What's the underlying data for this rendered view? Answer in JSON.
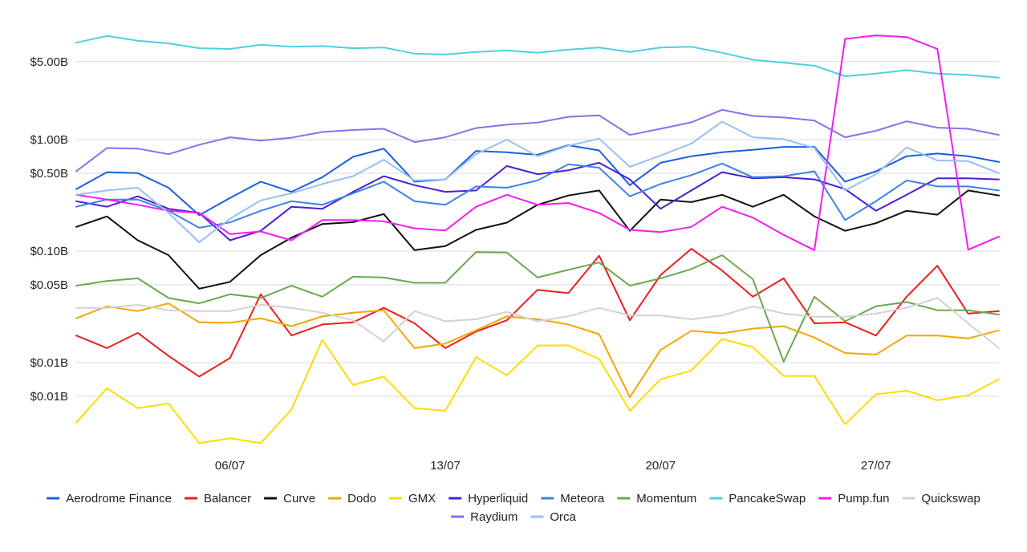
{
  "chart_data": {
    "type": "line",
    "title": "",
    "xlabel": "",
    "ylabel": "",
    "y_scale": "log",
    "grid": "horizontal",
    "legend_position": "bottom",
    "x_count": 31,
    "x_tick_labels": [
      {
        "index": 5,
        "label": "06/07"
      },
      {
        "index": 12,
        "label": "13/07"
      },
      {
        "index": 19,
        "label": "20/07"
      },
      {
        "index": 26,
        "label": "27/07"
      }
    ],
    "y_gridlines": [
      {
        "value": 5.0,
        "label": "$5.00B"
      },
      {
        "value": 1.0,
        "label": "$1.00B"
      },
      {
        "value": 0.5,
        "label": "$0.50B"
      },
      {
        "value": 0.1,
        "label": "$0.10B"
      },
      {
        "value": 0.05,
        "label": "$0.05B"
      },
      {
        "value": 0.01,
        "label": "$0.01B"
      },
      {
        "value": 0.005,
        "label": "$0.01B"
      }
    ],
    "series": [
      {
        "name": "Aerodrome Finance",
        "color": "#1a5fe0",
        "values": [
          0.36,
          0.51,
          0.5,
          0.37,
          0.21,
          0.3,
          0.42,
          0.34,
          0.46,
          0.7,
          0.83,
          0.42,
          0.44,
          0.79,
          0.77,
          0.73,
          0.89,
          0.8,
          0.39,
          0.62,
          0.71,
          0.77,
          0.81,
          0.86,
          0.86,
          0.42,
          0.52,
          0.71,
          0.75,
          0.71,
          0.63
        ]
      },
      {
        "name": "Balancer",
        "color": "#ee1d1d",
        "values": [
          0.0175,
          0.0135,
          0.0185,
          0.0115,
          0.0075,
          0.011,
          0.041,
          0.0175,
          0.022,
          0.023,
          0.031,
          0.0225,
          0.0135,
          0.019,
          0.024,
          0.045,
          0.042,
          0.091,
          0.024,
          0.061,
          0.105,
          0.067,
          0.039,
          0.057,
          0.0225,
          0.023,
          0.0175,
          0.039,
          0.074,
          0.0275,
          0.029
        ]
      },
      {
        "name": "Curve",
        "color": "#111111",
        "values": [
          0.165,
          0.205,
          0.125,
          0.092,
          0.046,
          0.053,
          0.092,
          0.132,
          0.175,
          0.182,
          0.215,
          0.102,
          0.111,
          0.155,
          0.18,
          0.26,
          0.315,
          0.35,
          0.152,
          0.29,
          0.275,
          0.32,
          0.25,
          0.32,
          0.205,
          0.152,
          0.178,
          0.23,
          0.212,
          0.35,
          0.315
        ]
      },
      {
        "name": "Dodo",
        "color": "#f5a500",
        "values": [
          0.025,
          0.032,
          0.029,
          0.034,
          0.023,
          0.0228,
          0.025,
          0.0212,
          0.026,
          0.028,
          0.0295,
          0.0135,
          0.0148,
          0.0195,
          0.026,
          0.0245,
          0.022,
          0.018,
          0.0049,
          0.013,
          0.0193,
          0.0183,
          0.0202,
          0.0212,
          0.0168,
          0.0122,
          0.0118,
          0.0175,
          0.0175,
          0.0165,
          0.0195
        ]
      },
      {
        "name": "GMX",
        "color": "#fddc00",
        "values": [
          0.0029,
          0.0059,
          0.0039,
          0.0043,
          0.0019,
          0.0021,
          0.0019,
          0.0038,
          0.016,
          0.0063,
          0.0075,
          0.0039,
          0.0037,
          0.0112,
          0.0077,
          0.0142,
          0.0143,
          0.0108,
          0.0037,
          0.0071,
          0.0085,
          0.0163,
          0.0138,
          0.0076,
          0.0076,
          0.0028,
          0.0052,
          0.0056,
          0.0046,
          0.0051,
          0.0071
        ]
      },
      {
        "name": "Hyperliquid",
        "color": "#4a1fd6",
        "values": [
          0.28,
          0.25,
          0.31,
          0.24,
          0.22,
          0.125,
          0.152,
          0.25,
          0.24,
          0.34,
          0.47,
          0.39,
          0.34,
          0.35,
          0.58,
          0.49,
          0.53,
          0.62,
          0.44,
          0.24,
          0.35,
          0.51,
          0.45,
          0.46,
          0.44,
          0.36,
          0.23,
          0.32,
          0.45,
          0.45,
          0.44
        ]
      },
      {
        "name": "Meteora",
        "color": "#3e82e8",
        "values": [
          0.25,
          0.29,
          0.29,
          0.23,
          0.162,
          0.181,
          0.23,
          0.28,
          0.26,
          0.33,
          0.42,
          0.28,
          0.26,
          0.38,
          0.37,
          0.43,
          0.6,
          0.56,
          0.31,
          0.4,
          0.48,
          0.61,
          0.46,
          0.47,
          0.52,
          0.19,
          0.28,
          0.43,
          0.38,
          0.38,
          0.35
        ]
      },
      {
        "name": "Momentum",
        "color": "#6aa84f",
        "values": [
          0.049,
          0.054,
          0.057,
          0.038,
          0.034,
          0.041,
          0.038,
          0.049,
          0.039,
          0.059,
          0.058,
          0.052,
          0.052,
          0.098,
          0.097,
          0.058,
          0.068,
          0.079,
          0.049,
          0.057,
          0.069,
          0.092,
          0.056,
          0.0102,
          0.039,
          0.0235,
          0.032,
          0.035,
          0.0295,
          0.0295,
          0.027
        ]
      },
      {
        "name": "PancakeSwap",
        "color": "#4fcfe0",
        "values": [
          7.4,
          8.5,
          7.7,
          7.3,
          6.6,
          6.5,
          7.1,
          6.8,
          6.9,
          6.6,
          6.7,
          5.9,
          5.8,
          6.1,
          6.3,
          6.0,
          6.4,
          6.7,
          6.1,
          6.7,
          6.8,
          6.0,
          5.2,
          4.9,
          4.6,
          3.7,
          3.9,
          4.2,
          3.9,
          3.8,
          3.6
        ]
      },
      {
        "name": "Pump.fun",
        "color": "#f01ef0",
        "values": [
          0.32,
          0.29,
          0.26,
          0.23,
          0.22,
          0.142,
          0.15,
          0.125,
          0.19,
          0.19,
          0.185,
          0.16,
          0.153,
          0.25,
          0.32,
          0.26,
          0.27,
          0.22,
          0.155,
          0.148,
          0.165,
          0.25,
          0.2,
          0.14,
          0.102,
          8.0,
          8.6,
          8.3,
          6.5,
          0.103,
          0.135
        ]
      },
      {
        "name": "Quickswap",
        "color": "#d2d2d2",
        "values": [
          0.031,
          0.031,
          0.033,
          0.0295,
          0.029,
          0.029,
          0.033,
          0.031,
          0.028,
          0.024,
          0.0155,
          0.029,
          0.0235,
          0.0245,
          0.0285,
          0.0235,
          0.026,
          0.031,
          0.0265,
          0.0265,
          0.0245,
          0.0265,
          0.032,
          0.0275,
          0.0258,
          0.0258,
          0.0275,
          0.031,
          0.038,
          0.0225,
          0.0135
        ]
      },
      {
        "name": "Raydium",
        "color": "#8a6ff0",
        "values": [
          0.52,
          0.84,
          0.83,
          0.74,
          0.9,
          1.05,
          0.98,
          1.04,
          1.17,
          1.22,
          1.25,
          0.95,
          1.05,
          1.27,
          1.36,
          1.42,
          1.6,
          1.65,
          1.1,
          1.25,
          1.43,
          1.85,
          1.63,
          1.58,
          1.48,
          1.05,
          1.2,
          1.46,
          1.28,
          1.25,
          1.1
        ]
      },
      {
        "name": "Orca",
        "color": "#97bff5",
        "values": [
          0.32,
          0.35,
          0.37,
          0.22,
          0.12,
          0.195,
          0.285,
          0.33,
          0.4,
          0.47,
          0.66,
          0.43,
          0.44,
          0.74,
          1.0,
          0.71,
          0.88,
          1.02,
          0.57,
          0.72,
          0.92,
          1.45,
          1.05,
          1.01,
          0.84,
          0.35,
          0.49,
          0.85,
          0.65,
          0.64,
          0.5
        ]
      }
    ]
  }
}
